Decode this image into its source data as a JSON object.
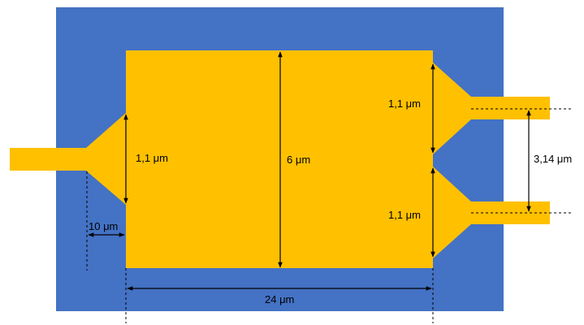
{
  "colors": {
    "substrate": "#4472C4",
    "metal": "#FFC000",
    "annotation": "#000000",
    "background": "#FFFFFF"
  },
  "labels": {
    "left_taper_width": "1,1 μm",
    "body_height": "6 μm",
    "right_upper_taper_width": "1,1 μm",
    "right_lower_taper_width": "1,1 μm",
    "port_spacing": "3,14 μm",
    "left_taper_length": "10 μm",
    "body_length": "24 μm"
  }
}
